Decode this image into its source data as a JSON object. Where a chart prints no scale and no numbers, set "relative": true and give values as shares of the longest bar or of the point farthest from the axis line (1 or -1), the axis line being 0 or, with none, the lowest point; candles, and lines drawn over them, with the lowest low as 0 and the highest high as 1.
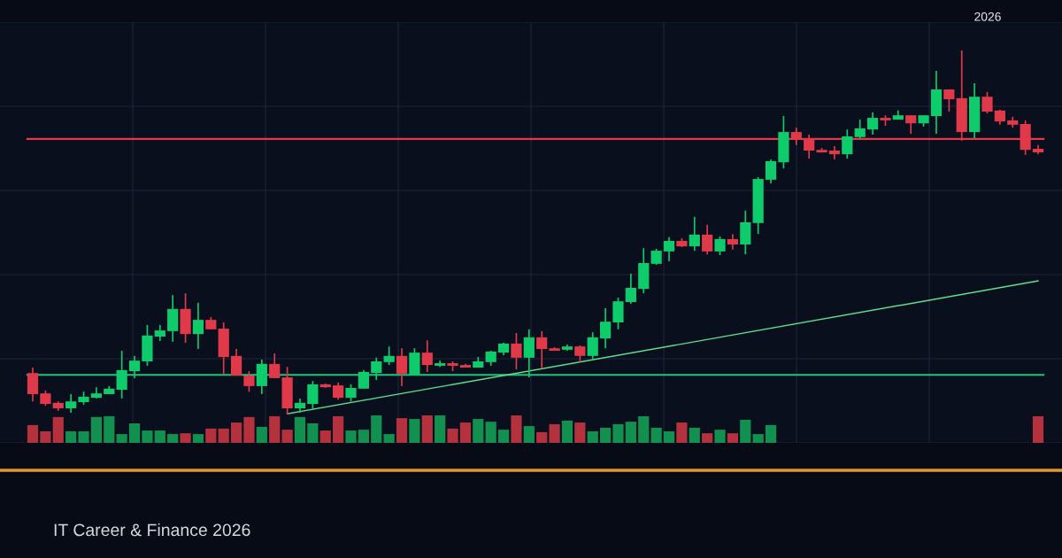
{
  "chart_data": [
    {
      "type": "candlestick",
      "subtitle": "IT Career & Finance 2026",
      "annotations": [
        "2026"
      ],
      "relative": true,
      "grid": true,
      "categories": [
        null,
        null,
        null,
        null,
        null,
        null,
        null,
        null,
        null,
        null,
        null,
        null,
        null,
        null,
        null,
        null,
        null,
        null,
        null,
        null,
        null,
        null,
        null,
        null,
        null,
        null,
        null,
        null,
        null,
        null,
        null,
        null,
        null,
        null,
        null,
        null,
        null,
        null,
        null,
        null,
        null,
        null,
        null,
        null,
        null,
        null,
        null,
        null,
        null,
        null,
        null,
        null,
        null,
        null,
        null,
        null,
        null,
        null,
        null,
        null,
        null,
        null,
        null,
        null,
        null,
        null,
        null,
        null,
        null,
        null,
        null,
        null,
        null,
        null,
        null,
        null,
        null,
        null,
        null,
        null
      ],
      "ohlc": [
        [
          0.114,
          0.129,
          0.036,
          0.056
        ],
        [
          0.058,
          0.066,
          0.024,
          0.029
        ],
        [
          0.032,
          0.036,
          0.01,
          0.017
        ],
        [
          0.017,
          0.056,
          0.005,
          0.036
        ],
        [
          0.034,
          0.063,
          0.027,
          0.049
        ],
        [
          0.046,
          0.075,
          0.044,
          0.058
        ],
        [
          0.056,
          0.078,
          0.056,
          0.071
        ],
        [
          0.068,
          0.175,
          0.044,
          0.122
        ],
        [
          0.119,
          0.161,
          0.1,
          0.148
        ],
        [
          0.146,
          0.246,
          0.134,
          0.217
        ],
        [
          0.214,
          0.246,
          0.202,
          0.231
        ],
        [
          0.229,
          0.328,
          0.2,
          0.29
        ],
        [
          0.29,
          0.333,
          0.197,
          0.221
        ],
        [
          0.221,
          0.307,
          0.18,
          0.26
        ],
        [
          0.26,
          0.268,
          0.234,
          0.234
        ],
        [
          0.236,
          0.253,
          0.112,
          0.158
        ],
        [
          0.161,
          0.18,
          0.107,
          0.107
        ],
        [
          0.107,
          0.119,
          0.063,
          0.078
        ],
        [
          0.078,
          0.151,
          0.056,
          0.139
        ],
        [
          0.139,
          0.168,
          0.1,
          0.1
        ],
        [
          0.102,
          0.131,
          0.0,
          0.017
        ],
        [
          0.017,
          0.044,
          0.005,
          0.032
        ],
        [
          0.029,
          0.092,
          0.015,
          0.083
        ],
        [
          0.083,
          0.085,
          0.073,
          0.075
        ],
        [
          0.08,
          0.088,
          0.041,
          0.046
        ],
        [
          0.046,
          0.083,
          0.036,
          0.073
        ],
        [
          0.071,
          0.122,
          0.071,
          0.117
        ],
        [
          0.114,
          0.156,
          0.095,
          0.146
        ],
        [
          0.144,
          0.187,
          0.136,
          0.161
        ],
        [
          0.161,
          0.182,
          0.078,
          0.112
        ],
        [
          0.107,
          0.182,
          0.107,
          0.17
        ],
        [
          0.17,
          0.204,
          0.117,
          0.136
        ],
        [
          0.134,
          0.148,
          0.131,
          0.141
        ],
        [
          0.141,
          0.146,
          0.119,
          0.134
        ],
        [
          0.136,
          0.139,
          0.129,
          0.129
        ],
        [
          0.129,
          0.158,
          0.129,
          0.146
        ],
        [
          0.144,
          0.175,
          0.134,
          0.173
        ],
        [
          0.17,
          0.197,
          0.163,
          0.195
        ],
        [
          0.195,
          0.224,
          0.124,
          0.156
        ],
        [
          0.156,
          0.234,
          0.102,
          0.212
        ],
        [
          0.212,
          0.229,
          0.127,
          0.18
        ],
        [
          0.182,
          0.185,
          0.175,
          0.175
        ],
        [
          0.178,
          0.192,
          0.175,
          0.187
        ],
        [
          0.187,
          0.19,
          0.144,
          0.161
        ],
        [
          0.161,
          0.226,
          0.153,
          0.212
        ],
        [
          0.209,
          0.292,
          0.182,
          0.255
        ],
        [
          0.253,
          0.321,
          0.234,
          0.311
        ],
        [
          0.309,
          0.387,
          0.304,
          0.348
        ],
        [
          0.345,
          0.457,
          0.333,
          0.416
        ],
        [
          0.414,
          0.455,
          0.411,
          0.45
        ],
        [
          0.448,
          0.487,
          0.421,
          0.477
        ],
        [
          0.477,
          0.484,
          0.46,
          0.462
        ],
        [
          0.462,
          0.543,
          0.45,
          0.494
        ],
        [
          0.494,
          0.521,
          0.44,
          0.448
        ],
        [
          0.448,
          0.489,
          0.438,
          0.482
        ],
        [
          0.482,
          0.496,
          0.453,
          0.467
        ],
        [
          0.467,
          0.56,
          0.44,
          0.528
        ],
        [
          0.526,
          0.652,
          0.496,
          0.647
        ],
        [
          0.645,
          0.701,
          0.635,
          0.696
        ],
        [
          0.693,
          0.82,
          0.676,
          0.776
        ],
        [
          0.776,
          0.788,
          0.74,
          0.757
        ],
        [
          0.757,
          0.769,
          0.703,
          0.725
        ],
        [
          0.727,
          0.732,
          0.72,
          0.72
        ],
        [
          0.725,
          0.737,
          0.701,
          0.715
        ],
        [
          0.715,
          0.783,
          0.703,
          0.764
        ],
        [
          0.762,
          0.81,
          0.759,
          0.786
        ],
        [
          0.783,
          0.83,
          0.769,
          0.815
        ],
        [
          0.815,
          0.822,
          0.793,
          0.808
        ],
        [
          0.81,
          0.835,
          0.81,
          0.822
        ],
        [
          0.822,
          0.822,
          0.771,
          0.8
        ],
        [
          0.8,
          0.822,
          0.791,
          0.822
        ],
        [
          0.82,
          0.944,
          0.771,
          0.893
        ],
        [
          0.893,
          0.893,
          0.832,
          0.866
        ],
        [
          0.869,
          1.0,
          0.752,
          0.776
        ],
        [
          0.776,
          0.91,
          0.759,
          0.873
        ],
        [
          0.873,
          0.886,
          0.827,
          0.832
        ],
        [
          0.835,
          0.837,
          0.796,
          0.805
        ],
        [
          0.808,
          0.818,
          0.788,
          0.796
        ],
        [
          0.798,
          0.808,
          0.713,
          0.727
        ],
        [
          0.73,
          0.74,
          0.715,
          0.72
        ]
      ],
      "colors": [
        "#e0394a",
        "#e0394a",
        "#e0394a",
        "#0ecb6c",
        "#0ecb6c",
        "#0ecb6c",
        "#0ecb6c",
        "#0ecb6c",
        "#0ecb6c",
        "#0ecb6c",
        "#0ecb6c",
        "#0ecb6c",
        "#e0394a",
        "#0ecb6c",
        "#e0394a",
        "#e0394a",
        "#e0394a",
        "#e0394a",
        "#0ecb6c",
        "#e0394a",
        "#e0394a",
        "#0ecb6c",
        "#0ecb6c",
        "#e0394a",
        "#e0394a",
        "#0ecb6c",
        "#0ecb6c",
        "#0ecb6c",
        "#0ecb6c",
        "#e0394a",
        "#0ecb6c",
        "#e0394a",
        "#0ecb6c",
        "#e0394a",
        "#e0394a",
        "#0ecb6c",
        "#0ecb6c",
        "#0ecb6c",
        "#e0394a",
        "#0ecb6c",
        "#e0394a",
        "#e0394a",
        "#0ecb6c",
        "#e0394a",
        "#0ecb6c",
        "#0ecb6c",
        "#0ecb6c",
        "#0ecb6c",
        "#0ecb6c",
        "#0ecb6c",
        "#0ecb6c",
        "#e0394a",
        "#0ecb6c",
        "#e0394a",
        "#0ecb6c",
        "#e0394a",
        "#0ecb6c",
        "#0ecb6c",
        "#0ecb6c",
        "#0ecb6c",
        "#e0394a",
        "#e0394a",
        "#e0394a",
        "#e0394a",
        "#0ecb6c",
        "#0ecb6c",
        "#0ecb6c",
        "#e0394a",
        "#0ecb6c",
        "#e0394a",
        "#0ecb6c",
        "#0ecb6c",
        "#e0394a",
        "#e0394a",
        "#0ecb6c",
        "#e0394a",
        "#e0394a",
        "#e0394a",
        "#e0394a",
        "#e0394a"
      ],
      "series": [
        {
          "type": "line",
          "values": [
            null,
            null,
            null,
            null,
            null,
            null,
            null,
            null,
            null,
            null,
            null,
            null,
            null,
            null,
            null,
            null,
            null,
            null,
            null,
            null,
            0.002,
            null,
            null,
            null,
            null,
            null,
            null,
            null,
            null,
            null,
            null,
            null,
            null,
            null,
            null,
            null,
            null,
            null,
            null,
            null,
            null,
            null,
            null,
            null,
            null,
            null,
            null,
            null,
            null,
            null,
            null,
            null,
            null,
            null,
            null,
            null,
            null,
            null,
            null,
            null,
            null,
            null,
            null,
            null,
            null,
            null,
            null,
            null,
            null,
            null,
            null,
            null,
            null,
            null,
            null,
            null,
            null,
            null,
            null,
            0.367
          ],
          "color": "#5ee08f"
        }
      ],
      "ref_lines": [
        {
          "axis": "y",
          "value": 0.757,
          "color": "#e0394a"
        },
        {
          "axis": "y",
          "value": 0.109,
          "color": "#22c47a"
        }
      ]
    },
    {
      "type": "bar",
      "relative": true,
      "categories": [
        null,
        null,
        null,
        null,
        null,
        null,
        null,
        null,
        null,
        null,
        null,
        null,
        null,
        null,
        null,
        null,
        null,
        null,
        null,
        null,
        null,
        null,
        null,
        null,
        null,
        null,
        null,
        null,
        null,
        null,
        null,
        null,
        null,
        null,
        null,
        null,
        null,
        null,
        null,
        null,
        null,
        null,
        null,
        null,
        null,
        null,
        null,
        null,
        null,
        null,
        null,
        null,
        null,
        null,
        null,
        null,
        null,
        null,
        null,
        null,
        null,
        null,
        null,
        null,
        null,
        null,
        null,
        null,
        null,
        null,
        null,
        null,
        null,
        null,
        null,
        null,
        null,
        null,
        null,
        null
      ],
      "values": [
        0.65,
        0.42,
        0.94,
        0.42,
        0.42,
        0.94,
        0.97,
        0.32,
        0.71,
        0.45,
        0.45,
        0.32,
        0.35,
        0.32,
        0.52,
        0.52,
        0.74,
        0.94,
        0.58,
        0.97,
        0.48,
        0.94,
        0.71,
        0.45,
        0.97,
        0.45,
        0.48,
        1,
        0.32,
        0.9,
        0.87,
        1,
        1,
        0.52,
        0.74,
        0.87,
        0.77,
        0.48,
        1,
        0.61,
        0.39,
        0.68,
        0.81,
        0.74,
        0.42,
        0.55,
        0.68,
        0.77,
        0.97,
        0.55,
        0.42,
        0.74,
        0.55,
        0.35,
        0.48,
        0.35,
        0.84,
        0.32,
        0.65,
        null,
        null,
        null,
        null,
        null,
        null,
        null,
        null,
        null,
        null,
        null,
        null,
        null,
        null,
        null,
        null,
        null,
        null,
        null,
        null,
        0.97
      ],
      "colors": [
        "#b3323e",
        "#b3323e",
        "#b3323e",
        "#11904f",
        "#11904f",
        "#11904f",
        "#11904f",
        "#11904f",
        "#11904f",
        "#11904f",
        "#11904f",
        "#11904f",
        "#b3323e",
        "#11904f",
        "#b3323e",
        "#b3323e",
        "#b3323e",
        "#b3323e",
        "#11904f",
        "#b3323e",
        "#b3323e",
        "#11904f",
        "#11904f",
        "#b3323e",
        "#b3323e",
        "#11904f",
        "#11904f",
        "#11904f",
        "#11904f",
        "#b3323e",
        "#11904f",
        "#b3323e",
        "#11904f",
        "#b3323e",
        "#b3323e",
        "#11904f",
        "#11904f",
        "#11904f",
        "#b3323e",
        "#11904f",
        "#b3323e",
        "#b3323e",
        "#11904f",
        "#b3323e",
        "#11904f",
        "#11904f",
        "#11904f",
        "#11904f",
        "#11904f",
        "#11904f",
        "#11904f",
        "#b3323e",
        "#11904f",
        "#b3323e",
        "#11904f",
        "#b3323e",
        "#11904f",
        "#11904f",
        "#11904f",
        "#11904f",
        "#b3323e",
        "#b3323e",
        "#b3323e",
        "#b3323e",
        "#11904f",
        "#11904f",
        "#11904f",
        "#b3323e",
        "#11904f",
        "#b3323e",
        "#11904f",
        "#11904f",
        "#b3323e",
        "#b3323e",
        "#11904f",
        "#b3323e",
        "#b3323e",
        "#b3323e",
        "#b3323e",
        "#b3323e"
      ]
    }
  ]
}
